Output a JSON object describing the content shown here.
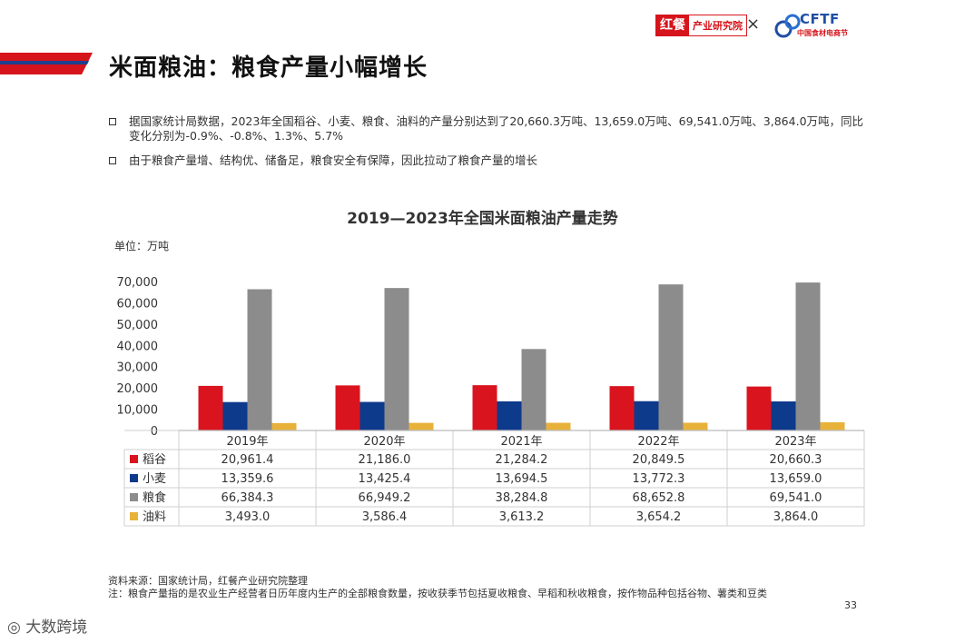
{
  "header": {
    "title": "米面粮油：粮食产量小幅增长",
    "brand_hongcan_logo": "红餐",
    "brand_hongcan_text": "产业研究院",
    "brand_separator": "×",
    "brand_cftf": "CFTF",
    "brand_cftf_sub": "中国食材电商节"
  },
  "bullets": [
    "据国家统计局数据，2023年全国稻谷、小麦、粮食、油料的产量分别达到了20,660.3万吨、13,659.0万吨、69,541.0万吨、3,864.0万吨，同比变化分别为-0.9%、-0.8%、1.3%、5.7%",
    "由于粮食产量增、结构优、储备足，粮食安全有保障，因此拉动了粮食产量的增长"
  ],
  "unit_label": "单位：万吨",
  "chart_data": {
    "type": "bar",
    "title": "2019—2023年全国米面粮油产量走势",
    "ylabel": "万吨",
    "ylim": [
      0,
      70000
    ],
    "yticks": [
      "0",
      "10,000",
      "20,000",
      "30,000",
      "40,000",
      "50,000",
      "60,000",
      "70,000"
    ],
    "categories": [
      "2019年",
      "2020年",
      "2021年",
      "2022年",
      "2023年"
    ],
    "series": [
      {
        "name": "稻谷",
        "color": "#d9141e",
        "values": [
          20961.4,
          21186.0,
          21284.2,
          20849.5,
          20660.3
        ],
        "labels": [
          "20,961.4",
          "21,186.0",
          "21,284.2",
          "20,849.5",
          "20,660.3"
        ]
      },
      {
        "name": "小麦",
        "color": "#0e3a8c",
        "values": [
          13359.6,
          13425.4,
          13694.5,
          13772.3,
          13659.0
        ],
        "labels": [
          "13,359.6",
          "13,425.4",
          "13,694.5",
          "13,772.3",
          "13,659.0"
        ]
      },
      {
        "name": "粮食",
        "color": "#8c8c8c",
        "values": [
          66384.3,
          66949.2,
          38284.8,
          68652.8,
          69541.0
        ],
        "labels": [
          "66,384.3",
          "66,949.2",
          "38,284.8",
          "68,652.8",
          "69,541.0"
        ]
      },
      {
        "name": "油料",
        "color": "#e8b23a",
        "values": [
          3493.0,
          3586.4,
          3613.2,
          3654.2,
          3864.0
        ],
        "labels": [
          "3,493.0",
          "3,586.4",
          "3,613.2",
          "3,654.2",
          "3,864.0"
        ]
      }
    ]
  },
  "footer": {
    "source": "资料来源：国家统计局，红餐产业研究院整理",
    "note": "注：粮食产量指的是农业生产经营者日历年度内生产的全部粮食数量，按收获季节包括夏收粮食、早稻和秋收粮食，按作物品种包括谷物、薯类和豆类",
    "page_number": "33",
    "watermark_brand": "大数跨境"
  }
}
